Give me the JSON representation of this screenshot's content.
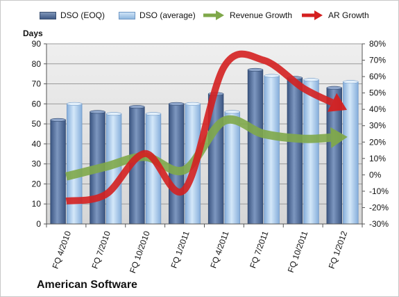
{
  "legend": {
    "eoq": "DSO (EOQ)",
    "avg": "DSO (average)",
    "rev": "Revenue Growth",
    "ar": "AR Growth"
  },
  "left_axis_title": "Days",
  "company": "American Software",
  "colors": {
    "eoq": "#4f6b96",
    "avg": "#9cc2e6",
    "rev": "#7fa84a",
    "ar": "#d42020",
    "plot_bg": "#dcdcdc"
  },
  "chart_data": {
    "type": "bar",
    "categories": [
      "FQ 4/2010",
      "FQ 7/2010",
      "FQ 10/2010",
      "FQ 1/2011",
      "FQ 4/2011",
      "FQ 7/2011",
      "FQ 10/2011",
      "FQ 1/2012"
    ],
    "series": [
      {
        "name": "DSO (EOQ)",
        "type": "bar",
        "axis": "left",
        "values": [
          52,
          56,
          58.5,
          60,
          65,
          77,
          73,
          68
        ]
      },
      {
        "name": "DSO (average)",
        "type": "bar",
        "axis": "left",
        "values": [
          60,
          55,
          55,
          60,
          56,
          74,
          72,
          71
        ]
      },
      {
        "name": "Revenue Growth",
        "type": "line",
        "axis": "right",
        "values": [
          -1,
          5,
          11,
          3,
          33,
          25,
          22,
          23
        ]
      },
      {
        "name": "AR Growth",
        "type": "line",
        "axis": "right",
        "values": [
          -16,
          -12,
          13,
          -9,
          66,
          70,
          53,
          41
        ]
      }
    ],
    "ylabel": "Days",
    "ylim": [
      0,
      90
    ],
    "yticks": [
      0,
      10,
      20,
      30,
      40,
      50,
      60,
      70,
      80,
      90
    ],
    "y2lim": [
      -30,
      80
    ],
    "y2ticks": [
      "-30%",
      "-20%",
      "-10%",
      "0%",
      "10%",
      "20%",
      "30%",
      "40%",
      "50%",
      "60%",
      "70%",
      "80%"
    ],
    "y2values": [
      -30,
      -20,
      -10,
      0,
      10,
      20,
      30,
      40,
      50,
      60,
      70,
      80
    ],
    "grid": true,
    "legend_position": "top"
  }
}
